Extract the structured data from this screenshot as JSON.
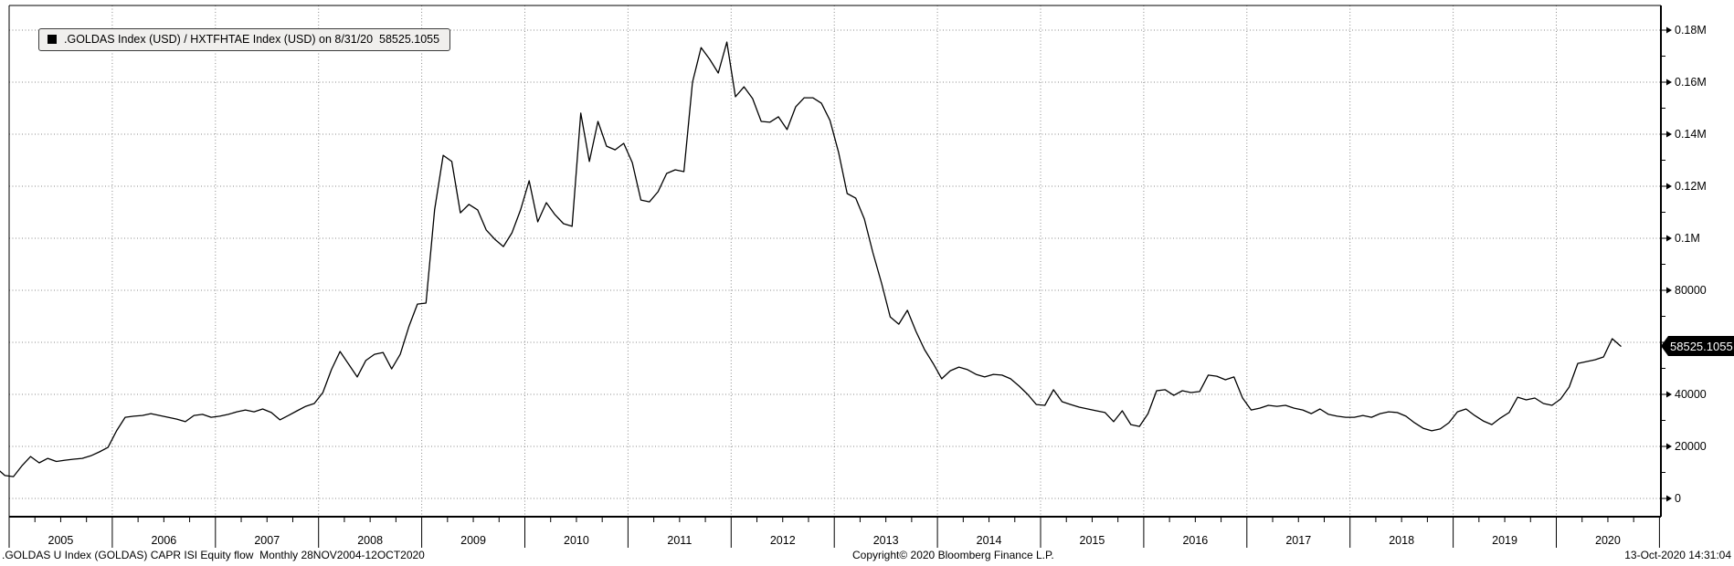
{
  "colors": {
    "line": "#000000",
    "grid": "#8a8a8a",
    "background": "#ffffff",
    "legend_bg": "#f0efed",
    "tag_bg": "#000000",
    "tag_text": "#ffffff",
    "text": "#000000"
  },
  "legend": {
    "marker": "black-square",
    "label": ".GOLDAS Index (USD) / HXTFHTAE Index (USD) on 8/31/20  58525.1055"
  },
  "value_tag": {
    "text": "58525.1055"
  },
  "footer": {
    "left": ".GOLDAS U Index (GOLDAS) CAPR ISI Equity flow  Monthly 28NOV2004-12OCT2020",
    "center": "Copyright© 2020 Bloomberg Finance L.P.",
    "right": "13-Oct-2020 14:31:04"
  },
  "chart_data": {
    "type": "line",
    "title": ".GOLDAS Index (USD) / HXTFHTAE Index (USD)",
    "frequency": "monthly",
    "start": "2004-11",
    "end": "2020-08",
    "last_value": 58525.1055,
    "last_value_date": "8/31/20",
    "grid": "dotted",
    "legend_position": "top-left",
    "ylim": [
      -7000,
      189500
    ],
    "xlim_years": [
      2004.92,
      2021.0
    ],
    "x_ticks": [
      "2005",
      "2006",
      "2007",
      "2008",
      "2009",
      "2010",
      "2011",
      "2012",
      "2013",
      "2014",
      "2015",
      "2016",
      "2017",
      "2018",
      "2019",
      "2020"
    ],
    "y_ticks": [
      {
        "value": 0,
        "label": "0"
      },
      {
        "value": 20000,
        "label": "20000"
      },
      {
        "value": 40000,
        "label": "40000"
      },
      {
        "value": 60000,
        "label": ""
      },
      {
        "value": 80000,
        "label": "80000"
      },
      {
        "value": 100000,
        "label": "0.1M"
      },
      {
        "value": 120000,
        "label": "0.12M"
      },
      {
        "value": 140000,
        "label": "0.14M"
      },
      {
        "value": 160000,
        "label": "0.16M"
      },
      {
        "value": 180000,
        "label": "0.18M"
      }
    ],
    "values": [
      10500,
      8800,
      8400,
      12600,
      16100,
      13700,
      15400,
      14200,
      14700,
      15100,
      15400,
      16400,
      17900,
      19600,
      26000,
      31200,
      31600,
      31900,
      32600,
      31900,
      31200,
      30500,
      29500,
      31900,
      32300,
      31200,
      31600,
      32300,
      33300,
      34000,
      33300,
      34400,
      33000,
      30200,
      31900,
      33700,
      35400,
      36500,
      40700,
      49500,
      56500,
      51600,
      46700,
      53000,
      55400,
      56100,
      49800,
      55400,
      66000,
      74700,
      75100,
      110900,
      131900,
      129500,
      109800,
      113000,
      110900,
      103200,
      99600,
      96800,
      102100,
      110900,
      122100,
      106300,
      113700,
      109100,
      105600,
      104600,
      148100,
      129500,
      144900,
      135400,
      134000,
      136500,
      129100,
      114700,
      114000,
      117900,
      124900,
      126300,
      125600,
      160000,
      173300,
      168800,
      163500,
      175400,
      154400,
      158200,
      153700,
      144900,
      144600,
      146700,
      141800,
      150500,
      154000,
      154000,
      151900,
      145300,
      133000,
      117200,
      115400,
      107400,
      94400,
      82800,
      69800,
      67000,
      72300,
      64200,
      57200,
      51900,
      46000,
      49100,
      50500,
      49500,
      47700,
      46700,
      47700,
      47400,
      46000,
      43200,
      40000,
      36100,
      35800,
      41800,
      37200,
      36100,
      35100,
      34400,
      33700,
      33000,
      29500,
      33700,
      28400,
      27700,
      32600,
      41400,
      41800,
      39600,
      41400,
      40700,
      41100,
      47400,
      47000,
      45600,
      46700,
      38600,
      34000,
      34700,
      35800,
      35400,
      35800,
      34700,
      34000,
      32600,
      34400,
      32300,
      31600,
      31200,
      31200,
      31900,
      31200,
      32600,
      33300,
      33000,
      31600,
      29100,
      27000,
      26000,
      26700,
      29100,
      33300,
      34400,
      31900,
      29800,
      28400,
      30900,
      33000,
      38900,
      37900,
      38600,
      36500,
      35800,
      38200,
      42800,
      51900,
      52600,
      53300,
      54400,
      61400,
      58525.1055
    ]
  }
}
